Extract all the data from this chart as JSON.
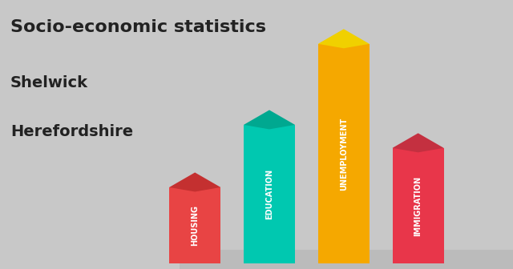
{
  "title_line1": "Socio-economic statistics",
  "title_line2": "Shelwick",
  "title_line3": "Herefordshire",
  "categories": [
    "HOUSING",
    "EDUCATION",
    "UNEMPLOYMENT",
    "IMMIGRATION"
  ],
  "values": [
    0.33,
    0.6,
    0.95,
    0.5
  ],
  "bar_colors": [
    "#e84444",
    "#00c8b0",
    "#f5a800",
    "#e8364a"
  ],
  "bar_top_colors": [
    "#c43030",
    "#00a890",
    "#f0d000",
    "#c43040"
  ],
  "background_color_top": "#c8c8c8",
  "background_color_bottom": "#d8d8d8",
  "label_color": "#ffffff",
  "title_color": "#222222"
}
